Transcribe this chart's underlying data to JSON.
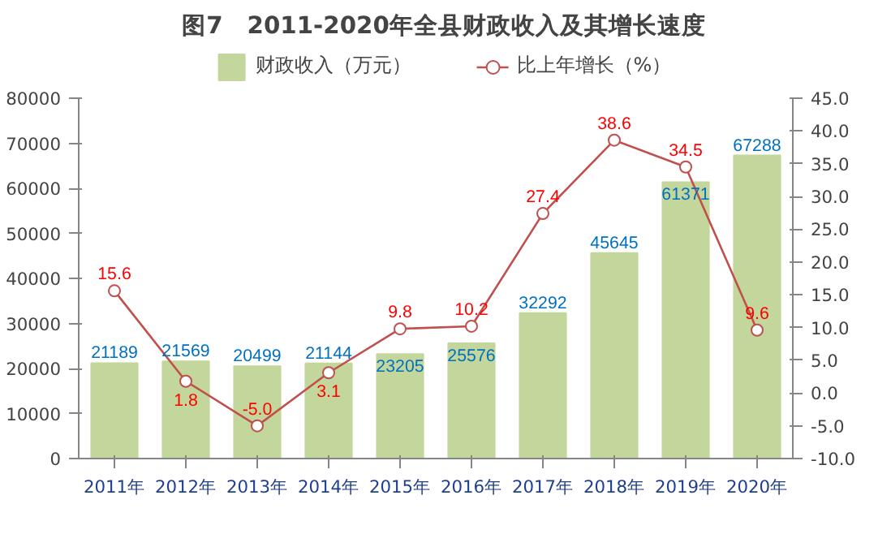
{
  "chart_data": {
    "type": "bar",
    "title": "图7　2011-2020年全县财政收入及其增长速度",
    "categories": [
      "2011年",
      "2012年",
      "2013年",
      "2014年",
      "2015年",
      "2016年",
      "2017年",
      "2018年",
      "2019年",
      "2020年"
    ],
    "series": [
      {
        "name": "财政收入（万元）",
        "color": "#c3d69b",
        "values": [
          21189,
          21569,
          20499,
          21144,
          23205,
          25576,
          32292,
          45645,
          61371,
          67288
        ],
        "value_labels": [
          "21189",
          "21569",
          "20499",
          "21144",
          "23205",
          "25576",
          "32292",
          "45645",
          "61371",
          "67288"
        ]
      },
      {
        "name": "比上年增长（%）",
        "type": "line",
        "axis": "y2",
        "color": "#c0504d",
        "marker": "circle",
        "values": [
          15.6,
          1.8,
          -5.0,
          3.1,
          9.8,
          10.2,
          27.4,
          38.6,
          34.5,
          9.6
        ],
        "value_labels": [
          "15.6",
          "1.8",
          "-5.0",
          "3.1",
          "9.8",
          "10.2",
          "27.4",
          "38.6",
          "34.5",
          "9.6"
        ]
      }
    ],
    "ylim": [
      0,
      80000
    ],
    "yticks": [
      0,
      10000,
      20000,
      30000,
      40000,
      50000,
      60000,
      70000,
      80000
    ],
    "y2lim": [
      -10,
      45
    ],
    "y2ticks": [
      {
        "value": -10,
        "label": "-10.0"
      },
      {
        "value": -5,
        "label": "-5.0"
      },
      {
        "value": 0,
        "label": "0.0"
      },
      {
        "value": 5,
        "label": "5.0"
      },
      {
        "value": 10,
        "label": "10.0"
      },
      {
        "value": 15,
        "label": "15.0"
      },
      {
        "value": 20,
        "label": "20.0"
      },
      {
        "value": 25,
        "label": "25.0"
      },
      {
        "value": 30,
        "label": "30.0"
      },
      {
        "value": 35,
        "label": "35.0"
      },
      {
        "value": 40,
        "label": "40.0"
      },
      {
        "value": 45,
        "label": "45.0"
      }
    ],
    "grid": false,
    "legend": "top"
  }
}
